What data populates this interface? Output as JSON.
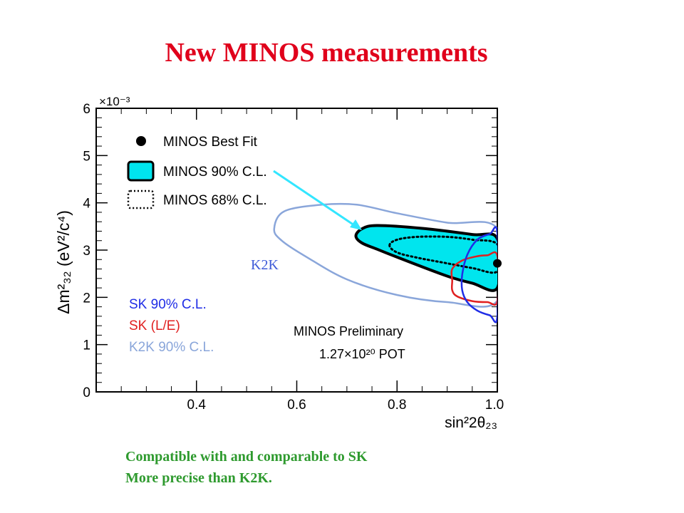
{
  "slide": {
    "title": "New MINOS measurements",
    "title_color": "#e0001b",
    "conclusions": [
      "Compatible with and comparable to SK",
      "More precise than K2K."
    ],
    "conclusion_color": "#2e9a2e",
    "callout_label": "K2K",
    "callout_color": "#3f5bd8",
    "arrow_color": "#33e6ff"
  },
  "chart_data": {
    "type": "contour",
    "xlabel": "sin²2θ₂₃",
    "ylabel": "Δm²₃₂ (eV²/c⁴)",
    "y_multiplier": "×10⁻³",
    "xlim": [
      0.2,
      1.0
    ],
    "ylim": [
      0,
      6
    ],
    "x_ticks": [
      "0.4",
      "0.6",
      "0.8",
      "1.0"
    ],
    "y_ticks": [
      "0",
      "1",
      "2",
      "3",
      "4",
      "5",
      "6"
    ],
    "legend_top": [
      {
        "label": "MINOS Best Fit",
        "marker": "dot",
        "color": "#000000"
      },
      {
        "label": "MINOS 90% C.L.",
        "marker": "filled-box",
        "color": "#00e5ee"
      },
      {
        "label": "MINOS 68% C.L.",
        "marker": "dotted-box",
        "color": "#000000"
      }
    ],
    "legend_bottom": [
      {
        "label": "SK 90% C.L.",
        "color": "#1f2de6"
      },
      {
        "label": "SK (L/E)",
        "color": "#e02020"
      },
      {
        "label": "K2K 90% C.L.",
        "color": "#8aa6da"
      }
    ],
    "annotation_lines": [
      "MINOS Preliminary",
      "1.27×10²⁰ POT"
    ],
    "best_fit": {
      "x": 1.0,
      "y": 2.72
    },
    "series": [
      {
        "name": "MINOS 90% C.L.",
        "fill": "#00e5ee",
        "stroke": "#000000",
        "points": [
          [
            0.718,
            3.3
          ],
          [
            0.73,
            3.45
          ],
          [
            0.76,
            3.52
          ],
          [
            0.85,
            3.46
          ],
          [
            0.95,
            3.33
          ],
          [
            1.0,
            3.24
          ],
          [
            1.0,
            2.2
          ],
          [
            0.95,
            2.3
          ],
          [
            0.9,
            2.45
          ],
          [
            0.8,
            2.85
          ],
          [
            0.76,
            3.02
          ],
          [
            0.73,
            3.15
          ]
        ]
      },
      {
        "name": "MINOS 68% C.L.",
        "dashed": true,
        "stroke": "#000000",
        "points": [
          [
            0.785,
            3.1
          ],
          [
            0.8,
            3.22
          ],
          [
            0.84,
            3.28
          ],
          [
            0.9,
            3.28
          ],
          [
            0.95,
            3.22
          ],
          [
            1.0,
            3.12
          ],
          [
            1.0,
            2.55
          ],
          [
            0.95,
            2.62
          ],
          [
            0.9,
            2.72
          ],
          [
            0.84,
            2.84
          ],
          [
            0.8,
            2.95
          ]
        ]
      },
      {
        "name": "K2K 90% C.L.",
        "stroke": "#8aa6da",
        "points": [
          [
            0.555,
            3.45
          ],
          [
            0.575,
            3.82
          ],
          [
            0.65,
            3.96
          ],
          [
            0.72,
            3.96
          ],
          [
            0.8,
            3.78
          ],
          [
            0.9,
            3.58
          ],
          [
            1.0,
            3.45
          ],
          [
            1.0,
            1.93
          ],
          [
            0.9,
            1.9
          ],
          [
            0.8,
            2.05
          ],
          [
            0.7,
            2.38
          ],
          [
            0.62,
            2.85
          ],
          [
            0.57,
            3.2
          ]
        ]
      },
      {
        "name": "SK 90% C.L.",
        "stroke": "#1f2de6",
        "points": [
          [
            0.93,
            2.48
          ],
          [
            0.94,
            2.9
          ],
          [
            0.96,
            3.22
          ],
          [
            0.985,
            3.34
          ],
          [
            1.0,
            3.36
          ],
          [
            1.0,
            1.6
          ],
          [
            0.985,
            1.62
          ],
          [
            0.96,
            1.72
          ],
          [
            0.94,
            1.9
          ],
          [
            0.93,
            2.15
          ]
        ]
      },
      {
        "name": "SK (L/E)",
        "stroke": "#e02020",
        "points": [
          [
            0.91,
            2.35
          ],
          [
            0.91,
            2.6
          ],
          [
            0.93,
            2.78
          ],
          [
            0.96,
            2.87
          ],
          [
            0.98,
            2.89
          ],
          [
            1.0,
            2.88
          ],
          [
            1.0,
            1.92
          ],
          [
            0.98,
            1.9
          ],
          [
            0.95,
            1.92
          ],
          [
            0.92,
            2.02
          ],
          [
            0.91,
            2.15
          ]
        ]
      }
    ]
  }
}
